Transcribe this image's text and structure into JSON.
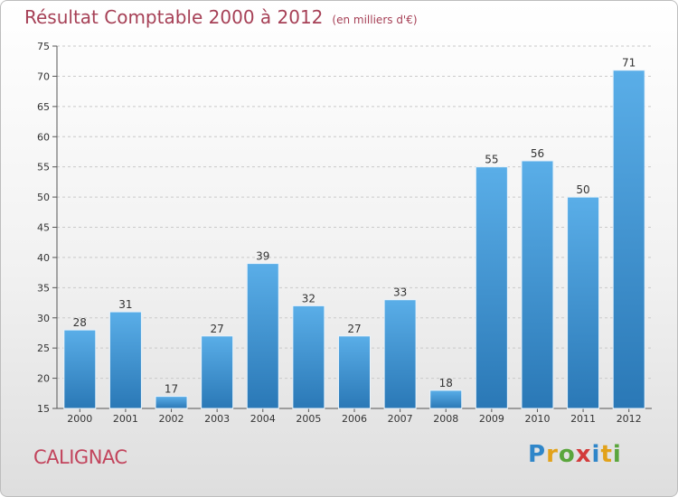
{
  "header": {
    "title": "Résultat Comptable 2000 à 2012",
    "unit": "(en milliers d'€)"
  },
  "footer": {
    "commune": "CALIGNAC",
    "logo": [
      "P",
      "r",
      "o",
      "x",
      "i",
      "t",
      "i"
    ]
  },
  "colors": {
    "bar_top": "#5aaee8",
    "bar_bottom": "#2a78b6",
    "title": "#a64056"
  },
  "chart_data": {
    "type": "bar",
    "title": "Résultat Comptable 2000 à 2012",
    "subtitle": "(en milliers d'€)",
    "xlabel": "",
    "ylabel": "",
    "categories": [
      "2000",
      "2001",
      "2002",
      "2003",
      "2004",
      "2005",
      "2006",
      "2007",
      "2008",
      "2009",
      "2010",
      "2011",
      "2012"
    ],
    "values": [
      28,
      31,
      17,
      27,
      39,
      32,
      27,
      33,
      18,
      55,
      56,
      50,
      71
    ],
    "ylim": [
      15,
      75
    ],
    "yticks": [
      15,
      20,
      25,
      30,
      35,
      40,
      45,
      50,
      55,
      60,
      65,
      70,
      75
    ],
    "grid": true,
    "legend": "none"
  }
}
